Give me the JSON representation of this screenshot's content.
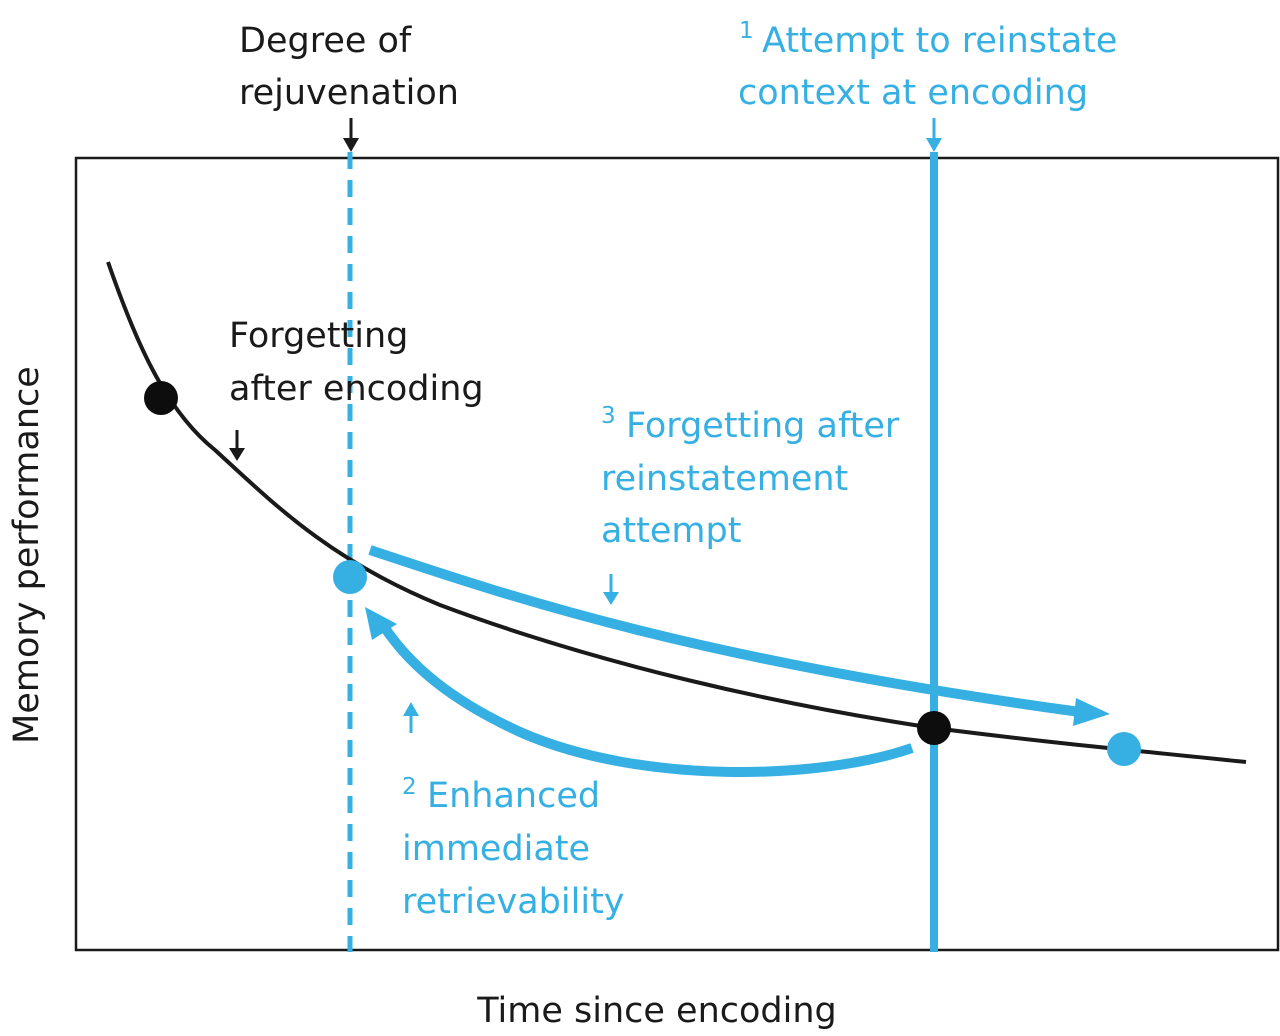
{
  "colors": {
    "accent_blue": "#36b0e2",
    "ink": "#1a1a1a",
    "background": "#ffffff"
  },
  "axes": {
    "x_label": "Time since encoding",
    "y_label": "Memory performance"
  },
  "labels": {
    "degree_line1": "Degree of",
    "degree_line2": "rejuvenation",
    "attempt_num": "1",
    "attempt_line1": "Attempt to reinstate",
    "attempt_line2": "context at encoding",
    "forgetting_line1": "Forgetting",
    "forgetting_line2": "after encoding",
    "reinst_num": "3",
    "reinst_line1": "Forgetting after",
    "reinst_line2": "reinstatement",
    "reinst_line3": "attempt",
    "enhanced_num": "2",
    "enhanced_line1": "Enhanced",
    "enhanced_line2": "immediate",
    "enhanced_line3": "retrievability"
  }
}
